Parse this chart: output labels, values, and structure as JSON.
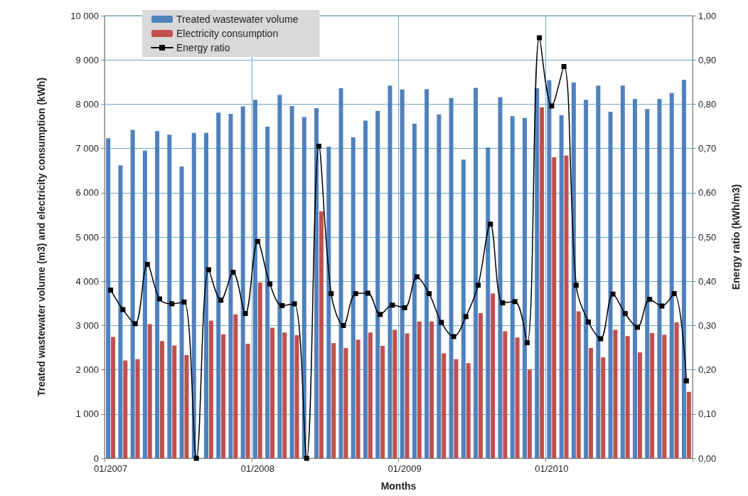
{
  "chart_data": {
    "type": "bar",
    "xlabel": "Months",
    "ylabel": "Treated wastewater volume (m3) and electricity consumption (kWh)",
    "y2label": "Energy ratio (kWh/m3)",
    "categories": [
      "01/2007",
      null,
      null,
      null,
      null,
      null,
      null,
      null,
      null,
      null,
      null,
      null,
      "01/2008",
      null,
      null,
      null,
      null,
      null,
      null,
      null,
      null,
      null,
      null,
      null,
      "01/2009",
      null,
      null,
      null,
      null,
      null,
      null,
      null,
      null,
      null,
      null,
      null,
      "01/2010",
      null,
      null,
      null,
      null,
      null,
      null,
      null,
      null,
      null,
      null,
      null
    ],
    "series": [
      {
        "name": "Treated wastewater volume",
        "color": "#4f81bd",
        "values": [
          7230,
          6620,
          7420,
          6950,
          7390,
          7310,
          6590,
          7350,
          7350,
          7810,
          7780,
          7950,
          8100,
          7490,
          8210,
          7960,
          7710,
          7910,
          7040,
          8360,
          7250,
          7630,
          7850,
          8420,
          8330,
          7560,
          8340,
          7770,
          8140,
          6750,
          8370,
          7020,
          8160,
          7730,
          7690,
          8360,
          8540,
          7750,
          8490,
          8100,
          8420,
          7830,
          8420,
          8120,
          7890,
          8120,
          8250,
          8550
        ]
      },
      {
        "name": "Electricity consumption",
        "color": "#c0504d",
        "values": [
          2740,
          2210,
          2240,
          3030,
          2650,
          2550,
          2330,
          null,
          3110,
          2800,
          3250,
          2590,
          3970,
          2950,
          2840,
          2780,
          null,
          5580,
          2600,
          2490,
          2680,
          2840,
          2540,
          2900,
          2820,
          3090,
          3090,
          2370,
          2240,
          2150,
          3280,
          3720,
          2870,
          2730,
          2010,
          7930,
          6800,
          6840,
          3320,
          2490,
          2280,
          2900,
          2760,
          2390,
          2830,
          2790,
          3070,
          1500
        ]
      },
      {
        "name": "Energy ratio",
        "type": "line",
        "axis": "y2",
        "color": "#000000",
        "values": [
          0.38,
          0.336,
          0.304,
          0.438,
          0.36,
          0.349,
          0.353,
          0,
          0.426,
          0.357,
          0.42,
          0.327,
          0.49,
          0.394,
          0.345,
          0.349,
          0,
          0.705,
          0.372,
          0.3,
          0.372,
          0.373,
          0.325,
          0.346,
          0.34,
          0.41,
          0.372,
          0.307,
          0.275,
          0.32,
          0.391,
          0.529,
          0.351,
          0.354,
          0.261,
          0.95,
          0.796,
          0.885,
          0.391,
          0.308,
          0.27,
          0.371,
          0.327,
          0.296,
          0.359,
          0.344,
          0.372,
          0.175
        ]
      }
    ],
    "ylim": [
      0,
      10000
    ],
    "yticks": [
      {
        "value": 0,
        "label": "0"
      },
      {
        "value": 1000,
        "label": "1 000"
      },
      {
        "value": 2000,
        "label": "2 000"
      },
      {
        "value": 3000,
        "label": "3 000"
      },
      {
        "value": 4000,
        "label": "4 000"
      },
      {
        "value": 5000,
        "label": "5 000"
      },
      {
        "value": 6000,
        "label": "6 000"
      },
      {
        "value": 7000,
        "label": "7 000"
      },
      {
        "value": 8000,
        "label": "8 000"
      },
      {
        "value": 9000,
        "label": "9 000"
      },
      {
        "value": 10000,
        "label": "10 000"
      }
    ],
    "y2lim": [
      0,
      1
    ],
    "y2ticks": [
      {
        "value": 0,
        "label": "0,00"
      },
      {
        "value": 0.1,
        "label": "0,10"
      },
      {
        "value": 0.2,
        "label": "0,20"
      },
      {
        "value": 0.3,
        "label": "0,30"
      },
      {
        "value": 0.4,
        "label": "0,40"
      },
      {
        "value": 0.5,
        "label": "0,50"
      },
      {
        "value": 0.6,
        "label": "0,60"
      },
      {
        "value": 0.7,
        "label": "0,70"
      },
      {
        "value": 0.8,
        "label": "0,80"
      },
      {
        "value": 0.9,
        "label": "0,90"
      },
      {
        "value": 1,
        "label": "1,00"
      }
    ],
    "grid": true,
    "legend": "top left",
    "marker": "square",
    "line_style": "solid"
  }
}
